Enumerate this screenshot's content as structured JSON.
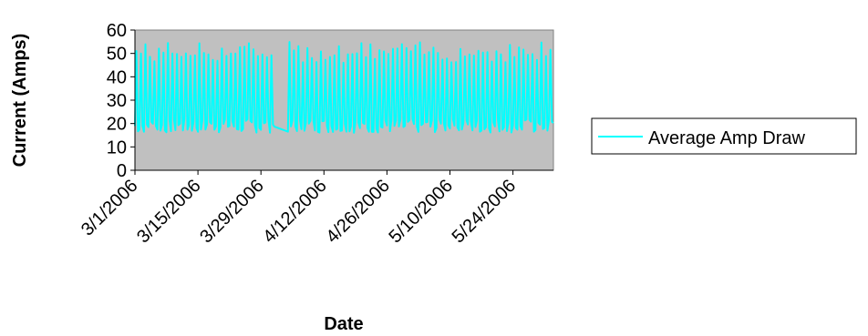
{
  "chart_data": {
    "type": "line",
    "title": "",
    "xlabel": "Date",
    "ylabel": "Current (Amps)",
    "ylim": [
      0,
      60
    ],
    "yticks": [
      0,
      10,
      20,
      30,
      40,
      50,
      60
    ],
    "xlim": [
      "2006-03-01",
      "2006-06-02"
    ],
    "x_tick_labels": [
      "3/1/2006",
      "3/15/2006",
      "3/29/2006",
      "4/12/2006",
      "4/26/2006",
      "5/10/2006",
      "5/24/2006"
    ],
    "grid": false,
    "plot_background": "#c0c0c0",
    "legend_position": "right",
    "series": [
      {
        "name": "Average Amp Draw",
        "color": "#00ffff",
        "low_range": [
          16,
          22
        ],
        "high_range": [
          46,
          55
        ],
        "gap": [
          "2006-04-01",
          "2006-04-04"
        ],
        "note_values": "Daily oscillation approx. 17-21 A (low) to 50-55 A (high) from 3/1/2006 through about 6/1/2006"
      }
    ]
  }
}
